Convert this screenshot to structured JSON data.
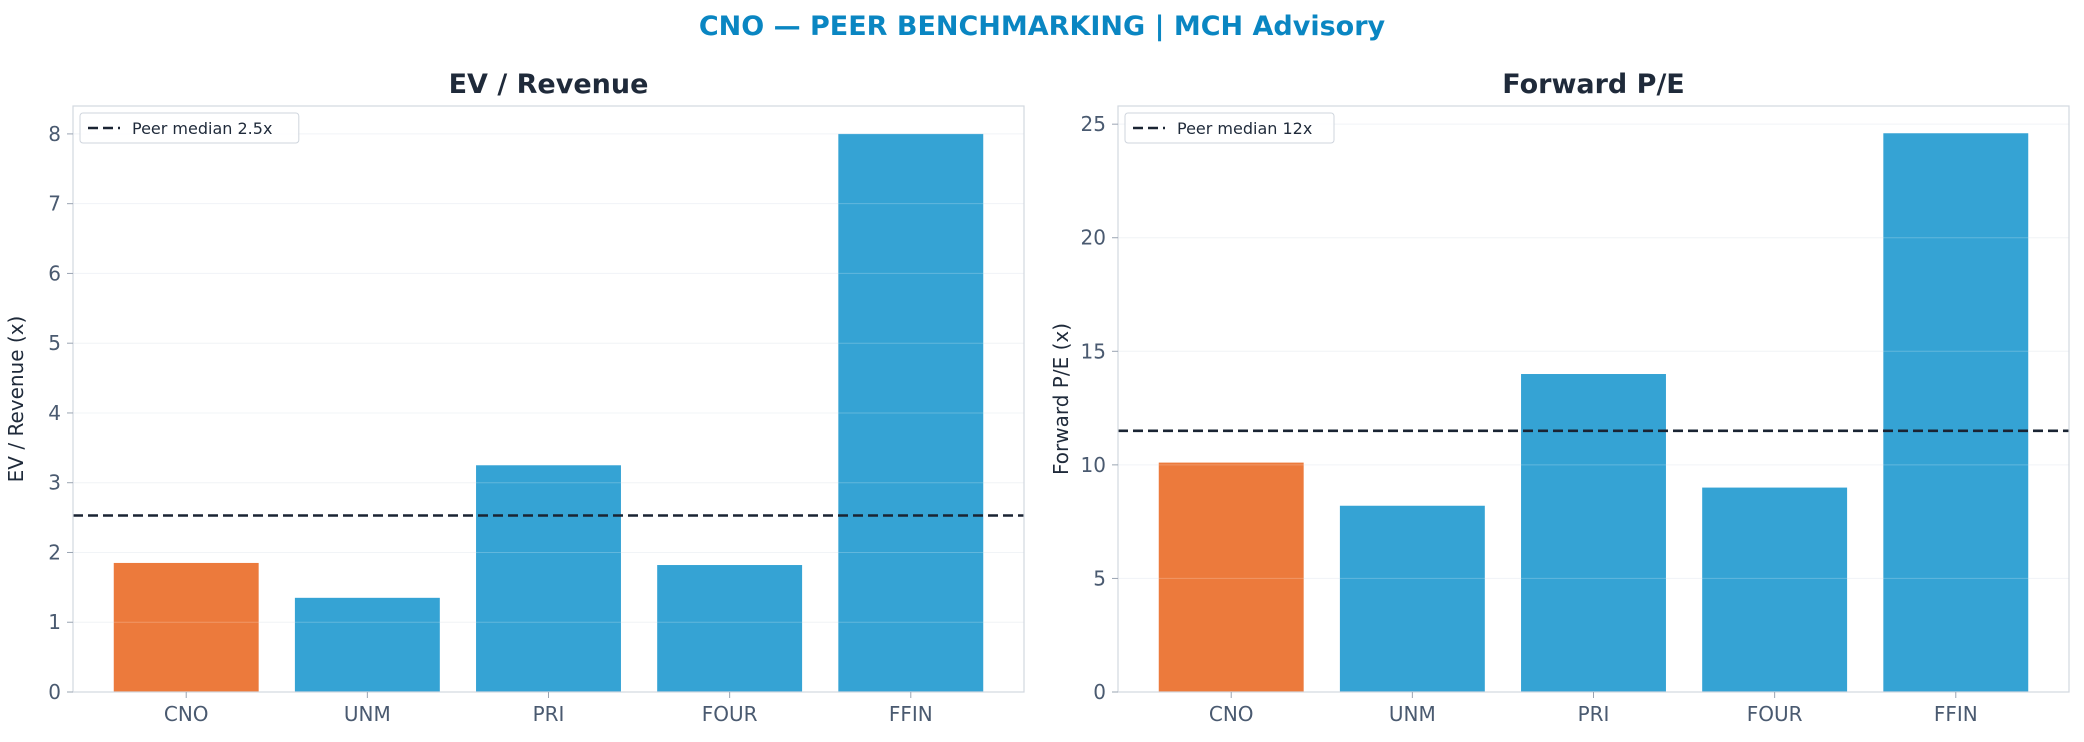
{
  "title": "CNO — PEER BENCHMARKING | MCH Advisory",
  "colors": {
    "title": "#0a86c2",
    "highlight": "#ec7a3c",
    "peer": "#35a3d4",
    "median_line": "#1a2433"
  },
  "chart_data": [
    {
      "type": "bar",
      "title": "EV / Revenue",
      "ylabel": "EV / Revenue (x)",
      "categories": [
        "CNO",
        "UNM",
        "PRI",
        "FOUR",
        "FFIN"
      ],
      "values": [
        1.85,
        1.35,
        3.25,
        1.82,
        8.0
      ],
      "highlight": "CNO",
      "ylim": [
        0,
        8.4
      ],
      "yticks": [
        0,
        1,
        2,
        3,
        4,
        5,
        6,
        7,
        8
      ],
      "reference_line": {
        "value": 2.53,
        "label": "Peer median 2.5x",
        "style": "dashed"
      },
      "legend": "top-left",
      "grid": true
    },
    {
      "type": "bar",
      "title": "Forward P/E",
      "ylabel": "Forward P/E (x)",
      "categories": [
        "CNO",
        "UNM",
        "PRI",
        "FOUR",
        "FFIN"
      ],
      "values": [
        10.1,
        8.2,
        14.0,
        9.0,
        24.6
      ],
      "highlight": "CNO",
      "ylim": [
        0,
        25.8
      ],
      "yticks": [
        0,
        5,
        10,
        15,
        20,
        25
      ],
      "reference_line": {
        "value": 11.5,
        "label": "Peer median 12x",
        "style": "dashed"
      },
      "legend": "top-left",
      "grid": true
    }
  ]
}
